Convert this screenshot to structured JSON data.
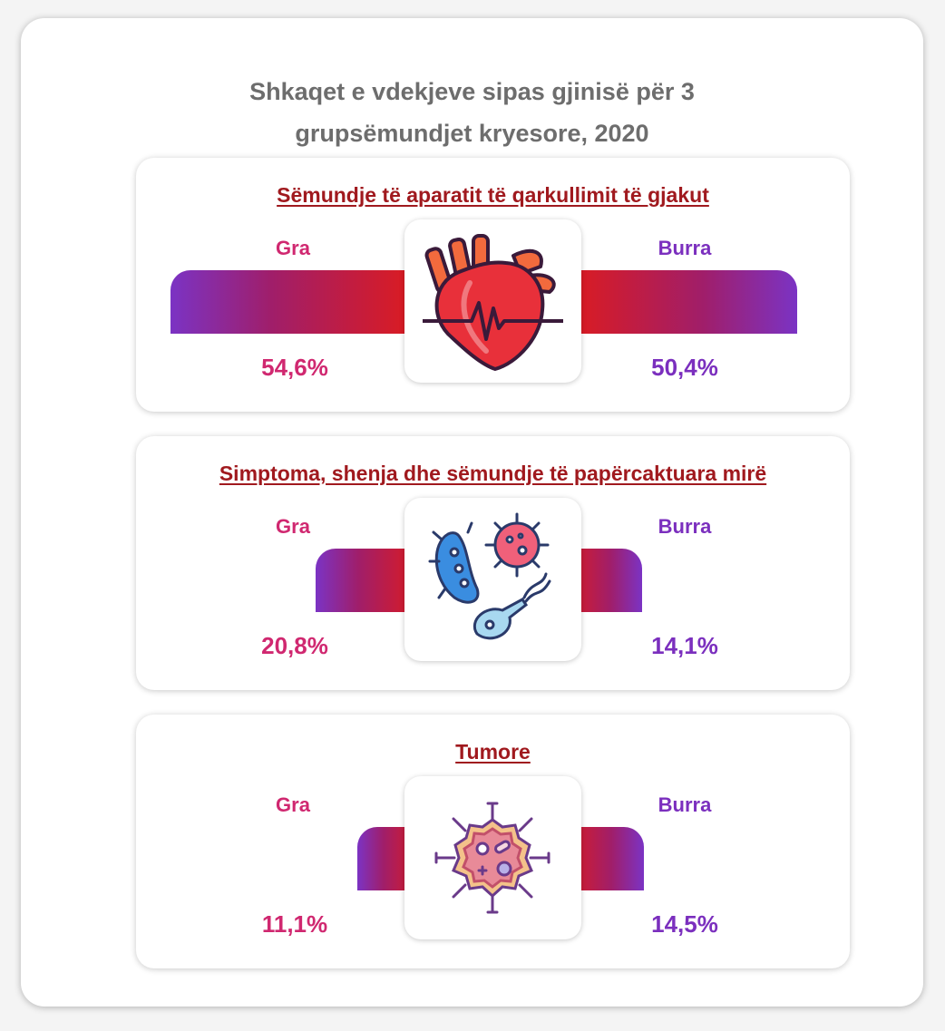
{
  "title_line1": "Shkaqet e vdekjeve sipas gjinisë për 3",
  "title_line2": "grupsëmundjet kryesore, 2020",
  "chart_data": {
    "type": "bar",
    "title": "Shkaqet e vdekjeve sipas gjinisë për 3 grupsëmundjet kryesore, 2020",
    "series_names": [
      "Gra",
      "Burra"
    ],
    "colors": {
      "female": "#d02870",
      "male": "#7b2fbe",
      "bar_red": "#e01b1b",
      "bar_purple": "#7b33c4",
      "panel_title": "#a0191e"
    },
    "groups": [
      {
        "name": "Sëmundje të aparatit të qarkullimit të gjakut",
        "icon": "heart-icon",
        "gra_label": "Gra",
        "burra_label": "Burra",
        "gra": 54.6,
        "burra": 50.4,
        "gra_text": "54,6%",
        "burra_text": "50,4%"
      },
      {
        "name": "Simptoma, shenja dhe sëmundje të papërcaktuara mirë",
        "icon": "virus-bacteria-icon",
        "gra_label": "Gra",
        "burra_label": "Burra",
        "gra": 20.8,
        "burra": 14.1,
        "gra_text": "20,8%",
        "burra_text": "14,1%"
      },
      {
        "name": "Tumore",
        "icon": "tumor-cell-icon",
        "gra_label": "Gra",
        "burra_label": "Burra",
        "gra": 11.1,
        "burra": 14.5,
        "gra_text": "11,1%",
        "burra_text": "14,5%"
      }
    ]
  }
}
